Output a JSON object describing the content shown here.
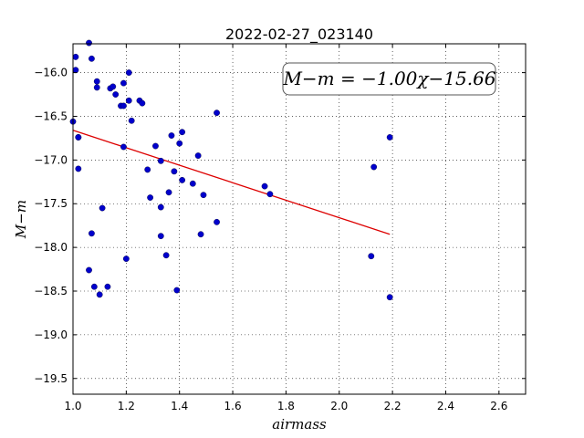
{
  "chart_data": {
    "type": "scatter",
    "title": "2022-02-27_023140",
    "xlabel": "airmass",
    "ylabel": "M−m",
    "xlim": [
      1.0,
      2.7
    ],
    "ylim": [
      -19.68,
      -15.67
    ],
    "x_ticks": [
      1.0,
      1.2,
      1.4,
      1.6,
      1.8,
      2.0,
      2.2,
      2.4,
      2.6
    ],
    "x_tick_labels": [
      "1.0",
      "1.2",
      "1.4",
      "1.6",
      "1.8",
      "2.0",
      "2.2",
      "2.4",
      "2.6"
    ],
    "y_ticks": [
      -16.0,
      -16.5,
      -17.0,
      -17.5,
      -18.0,
      -18.5,
      -19.0,
      -19.5
    ],
    "y_tick_labels": [
      "−16.0",
      "−16.5",
      "−17.0",
      "−17.5",
      "−18.0",
      "−18.5",
      "−19.0",
      "−19.5"
    ],
    "grid": true,
    "point_color": "#0000cc",
    "fit_color": "#dd0000",
    "annotation": "M−m = −1.00χ−15.66",
    "fit": {
      "slope": -1.0,
      "intercept": -15.66,
      "x_range": [
        1.0,
        2.19
      ]
    },
    "points": [
      [
        1.0,
        -16.56
      ],
      [
        1.01,
        -15.82
      ],
      [
        1.01,
        -15.97
      ],
      [
        1.02,
        -16.74
      ],
      [
        1.02,
        -16.74
      ],
      [
        1.02,
        -17.1
      ],
      [
        1.06,
        -15.66
      ],
      [
        1.06,
        -18.26
      ],
      [
        1.07,
        -15.84
      ],
      [
        1.07,
        -17.84
      ],
      [
        1.08,
        -18.45
      ],
      [
        1.09,
        -16.1
      ],
      [
        1.09,
        -16.17
      ],
      [
        1.1,
        -18.54
      ],
      [
        1.11,
        -17.55
      ],
      [
        1.13,
        -18.45
      ],
      [
        1.14,
        -16.18
      ],
      [
        1.15,
        -16.16
      ],
      [
        1.16,
        -16.25
      ],
      [
        1.18,
        -16.38
      ],
      [
        1.19,
        -16.38
      ],
      [
        1.19,
        -16.85
      ],
      [
        1.19,
        -16.12
      ],
      [
        1.2,
        -18.13
      ],
      [
        1.21,
        -16.32
      ],
      [
        1.21,
        -16.0
      ],
      [
        1.22,
        -16.55
      ],
      [
        1.25,
        -16.32
      ],
      [
        1.26,
        -16.35
      ],
      [
        1.28,
        -17.11
      ],
      [
        1.29,
        -17.43
      ],
      [
        1.31,
        -16.84
      ],
      [
        1.33,
        -17.01
      ],
      [
        1.33,
        -17.54
      ],
      [
        1.33,
        -17.87
      ],
      [
        1.35,
        -18.09
      ],
      [
        1.36,
        -17.37
      ],
      [
        1.37,
        -16.72
      ],
      [
        1.38,
        -17.13
      ],
      [
        1.39,
        -18.49
      ],
      [
        1.4,
        -16.81
      ],
      [
        1.41,
        -17.23
      ],
      [
        1.41,
        -16.68
      ],
      [
        1.45,
        -17.27
      ],
      [
        1.47,
        -16.95
      ],
      [
        1.48,
        -17.85
      ],
      [
        1.49,
        -17.4
      ],
      [
        1.54,
        -16.46
      ],
      [
        1.54,
        -17.71
      ],
      [
        1.72,
        -17.3
      ],
      [
        1.74,
        -17.39
      ],
      [
        2.12,
        -18.1
      ],
      [
        2.13,
        -17.08
      ],
      [
        2.19,
        -16.74
      ],
      [
        2.19,
        -18.57
      ]
    ]
  }
}
